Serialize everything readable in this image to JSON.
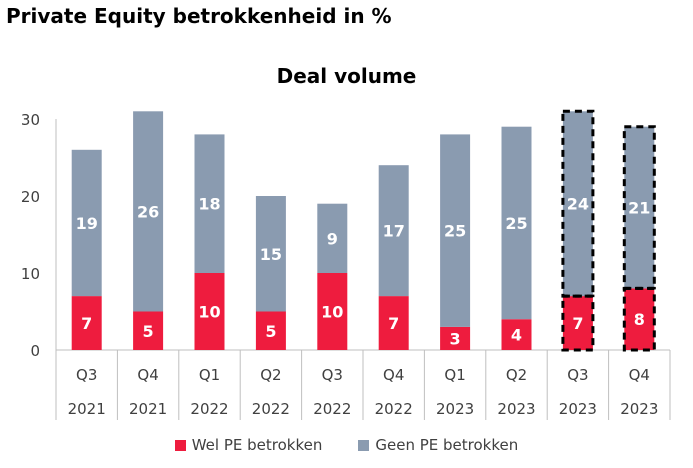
{
  "page": {
    "title": "Private Equity betrokkenheid in %"
  },
  "chart_data": {
    "type": "bar",
    "stacked": true,
    "title": "Deal volume",
    "categories": [
      "Q3 2021",
      "Q4 2021",
      "Q1 2022",
      "Q2 2022",
      "Q3 2022",
      "Q4 2022",
      "Q1 2023",
      "Q2 2023",
      "Q3 2023",
      "Q4 2023"
    ],
    "x_ticks_quarter": [
      "Q3",
      "Q4",
      "Q1",
      "Q2",
      "Q3",
      "Q4",
      "Q1",
      "Q2",
      "Q3",
      "Q4"
    ],
    "x_ticks_year": [
      "2021",
      "2021",
      "2022",
      "2022",
      "2022",
      "2022",
      "2023",
      "2023",
      "2023",
      "2023"
    ],
    "y_ticks": [
      "0",
      "10",
      "20",
      "30"
    ],
    "ylim": [
      0,
      30
    ],
    "grid": false,
    "legend_position": "bottom",
    "series": [
      {
        "name": "Wel PE betrokken",
        "color": "#ee1c3e",
        "values": [
          7,
          5,
          10,
          5,
          10,
          7,
          3,
          4,
          7,
          8
        ]
      },
      {
        "name": "Geen PE betrokken",
        "color": "#8a9bb0",
        "values": [
          19,
          26,
          18,
          15,
          9,
          17,
          25,
          25,
          24,
          21
        ]
      }
    ],
    "highlighted_dashed_outline": [
      "Q3 2023",
      "Q4 2023"
    ]
  }
}
